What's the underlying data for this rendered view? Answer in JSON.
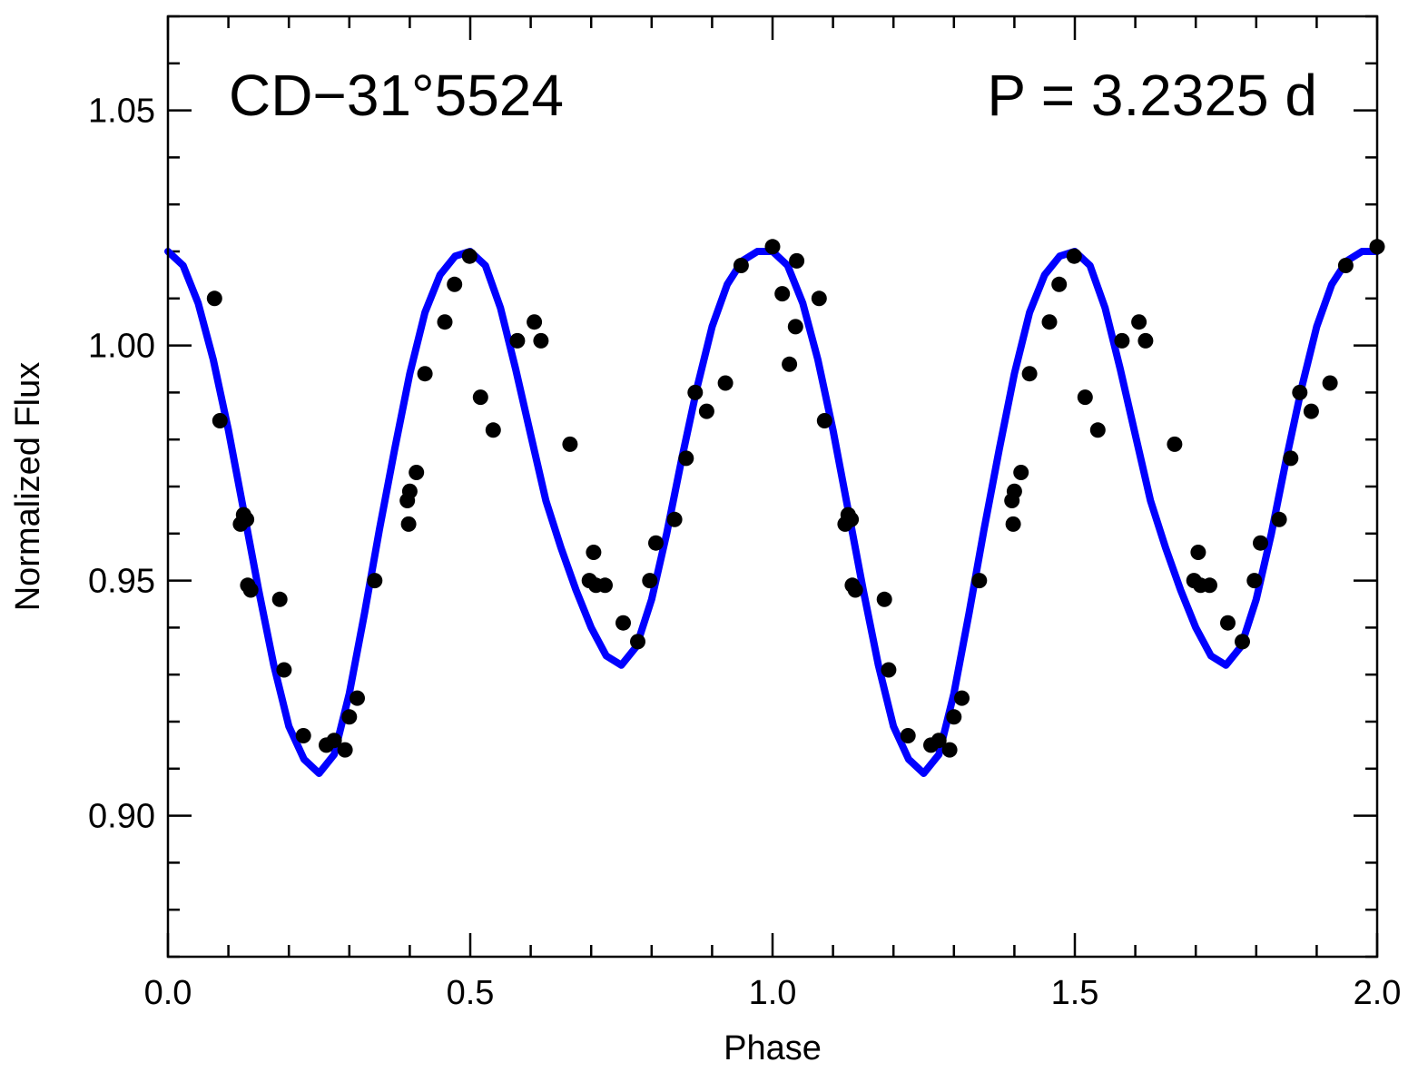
{
  "chart_data": {
    "type": "scatter",
    "title": "",
    "xlabel": "Phase",
    "ylabel": "Normalized Flux",
    "xlim": [
      0.0,
      2.0
    ],
    "ylim": [
      0.87,
      1.07
    ],
    "x_ticks": [
      {
        "value": 0.0,
        "label": "0.0"
      },
      {
        "value": 0.5,
        "label": "0.5"
      },
      {
        "value": 1.0,
        "label": "1.0"
      },
      {
        "value": 1.5,
        "label": "1.5"
      },
      {
        "value": 2.0,
        "label": "2.0"
      }
    ],
    "x_minor_step": 0.1,
    "y_ticks": [
      {
        "value": 0.9,
        "label": "0.90"
      },
      {
        "value": 0.95,
        "label": "0.95"
      },
      {
        "value": 1.0,
        "label": "1.00"
      },
      {
        "value": 1.05,
        "label": "1.05"
      }
    ],
    "y_minor_step": 0.01,
    "grid": false,
    "annotations": {
      "object": "CD−31°5524",
      "period": "P = 3.2325 d"
    },
    "series": [
      {
        "kind": "line",
        "color": "#0000ff",
        "x": [
          0.0,
          0.025,
          0.05,
          0.075,
          0.1,
          0.125,
          0.15,
          0.175,
          0.2,
          0.225,
          0.25,
          0.275,
          0.3,
          0.325,
          0.35,
          0.375,
          0.4,
          0.425,
          0.45,
          0.475,
          0.5,
          0.525,
          0.55,
          0.575,
          0.6,
          0.625,
          0.65,
          0.675,
          0.7,
          0.725,
          0.75,
          0.775,
          0.8,
          0.825,
          0.85,
          0.875,
          0.9,
          0.925,
          0.95,
          0.975,
          1.0,
          1.025,
          1.05,
          1.075,
          1.1,
          1.125,
          1.15,
          1.175,
          1.2,
          1.225,
          1.25,
          1.275,
          1.3,
          1.325,
          1.35,
          1.375,
          1.4,
          1.425,
          1.45,
          1.475,
          1.5,
          1.525,
          1.55,
          1.575,
          1.6,
          1.625,
          1.65,
          1.675,
          1.7,
          1.725,
          1.75,
          1.775,
          1.8,
          1.825,
          1.85,
          1.875,
          1.9,
          1.925,
          1.95,
          1.975,
          2.0
        ],
        "y": [
          1.02,
          1.017,
          1.009,
          0.997,
          0.982,
          0.965,
          0.948,
          0.932,
          0.919,
          0.912,
          0.909,
          0.913,
          0.926,
          0.943,
          0.961,
          0.978,
          0.994,
          1.007,
          1.015,
          1.019,
          1.02,
          1.017,
          1.008,
          0.995,
          0.981,
          0.967,
          0.957,
          0.948,
          0.94,
          0.934,
          0.932,
          0.936,
          0.946,
          0.96,
          0.976,
          0.991,
          1.004,
          1.013,
          1.018,
          1.02,
          1.02,
          1.017,
          1.009,
          0.997,
          0.982,
          0.965,
          0.948,
          0.932,
          0.919,
          0.912,
          0.909,
          0.913,
          0.926,
          0.943,
          0.961,
          0.978,
          0.994,
          1.007,
          1.015,
          1.019,
          1.02,
          1.017,
          1.008,
          0.995,
          0.981,
          0.967,
          0.957,
          0.948,
          0.94,
          0.934,
          0.932,
          0.936,
          0.946,
          0.96,
          0.976,
          0.991,
          1.004,
          1.013,
          1.018,
          1.02,
          1.02
        ]
      },
      {
        "kind": "scatter",
        "color": "#000000",
        "x": [
          0.077,
          0.086,
          0.12,
          0.125,
          0.13,
          0.132,
          0.137,
          0.185,
          0.192,
          0.224,
          0.262,
          0.275,
          0.293,
          0.3,
          0.313,
          0.342,
          0.396,
          0.398,
          0.4,
          0.411,
          0.425,
          0.458,
          0.474,
          0.499,
          0.517,
          0.538,
          0.578,
          0.606,
          0.617,
          0.665,
          0.697,
          0.704,
          0.708,
          0.723,
          0.753,
          0.777,
          0.797,
          0.807,
          0.838,
          0.857,
          0.872,
          0.891,
          0.922,
          0.948,
          1.0,
          1.016,
          1.028,
          1.038,
          1.04,
          1.077,
          1.086,
          1.12,
          1.125,
          1.13,
          1.132,
          1.137,
          1.185,
          1.192,
          1.224,
          1.262,
          1.275,
          1.293,
          1.3,
          1.313,
          1.342,
          1.396,
          1.398,
          1.4,
          1.411,
          1.425,
          1.458,
          1.474,
          1.499,
          1.517,
          1.538,
          1.578,
          1.606,
          1.617,
          1.665,
          1.697,
          1.704,
          1.708,
          1.723,
          1.753,
          1.777,
          1.797,
          1.807,
          1.838,
          1.857,
          1.872,
          1.891,
          1.922,
          1.948,
          2.0
        ],
        "y": [
          1.01,
          0.984,
          0.962,
          0.964,
          0.963,
          0.949,
          0.948,
          0.946,
          0.931,
          0.917,
          0.915,
          0.916,
          0.914,
          0.921,
          0.925,
          0.95,
          0.967,
          0.962,
          0.969,
          0.973,
          0.994,
          1.005,
          1.013,
          1.019,
          0.989,
          0.982,
          1.001,
          1.005,
          1.001,
          0.979,
          0.95,
          0.956,
          0.949,
          0.949,
          0.941,
          0.937,
          0.95,
          0.958,
          0.963,
          0.976,
          0.99,
          0.986,
          0.992,
          1.017,
          1.021,
          1.011,
          0.996,
          1.004,
          1.018,
          1.01,
          0.984,
          0.962,
          0.964,
          0.963,
          0.949,
          0.948,
          0.946,
          0.931,
          0.917,
          0.915,
          0.916,
          0.914,
          0.921,
          0.925,
          0.95,
          0.967,
          0.962,
          0.969,
          0.973,
          0.994,
          1.005,
          1.013,
          1.019,
          0.989,
          0.982,
          1.001,
          1.005,
          1.001,
          0.979,
          0.95,
          0.956,
          0.949,
          0.949,
          0.941,
          0.937,
          0.95,
          0.958,
          0.963,
          0.976,
          0.99,
          0.986,
          0.992,
          1.017,
          1.021
        ]
      }
    ]
  }
}
